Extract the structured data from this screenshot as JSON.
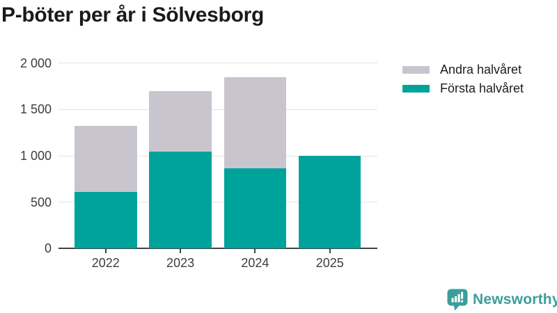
{
  "title": "P-böter per år i Sölvesborg",
  "chart_data": {
    "type": "bar",
    "stacked": true,
    "title": "P-böter per år i Sölvesborg",
    "categories": [
      "2022",
      "2023",
      "2024",
      "2025"
    ],
    "series": [
      {
        "name": "Första halvåret",
        "color": "#00a39b",
        "values": [
          610,
          1040,
          860,
          1000
        ]
      },
      {
        "name": "Andra halvåret",
        "color": "#c8c5cf",
        "values": [
          710,
          650,
          980,
          0
        ]
      }
    ],
    "ylim": [
      0,
      2000
    ],
    "y_ticks": [
      {
        "value": 0,
        "label": "0"
      },
      {
        "value": 500,
        "label": "500"
      },
      {
        "value": 1000,
        "label": "1 000"
      },
      {
        "value": 1500,
        "label": "1 500"
      },
      {
        "value": 2000,
        "label": "2 000"
      }
    ],
    "grid": "horizontal",
    "legend_position": "top-right",
    "legend": [
      {
        "label": "Andra halvåret",
        "color": "#c8c5cf"
      },
      {
        "label": "Första halvåret",
        "color": "#00a39b"
      }
    ]
  },
  "branding": {
    "logo_text": "Newsworthy",
    "logo_color": "#3b9e9c"
  },
  "colors": {
    "first_half": "#00a39b",
    "second_half": "#c8c5cf",
    "title_text": "#1a1a1a",
    "axis_text": "#3d3d3d",
    "gridline": "#e4e4e4",
    "axis_line": "#414141",
    "background": "#ffffff"
  }
}
